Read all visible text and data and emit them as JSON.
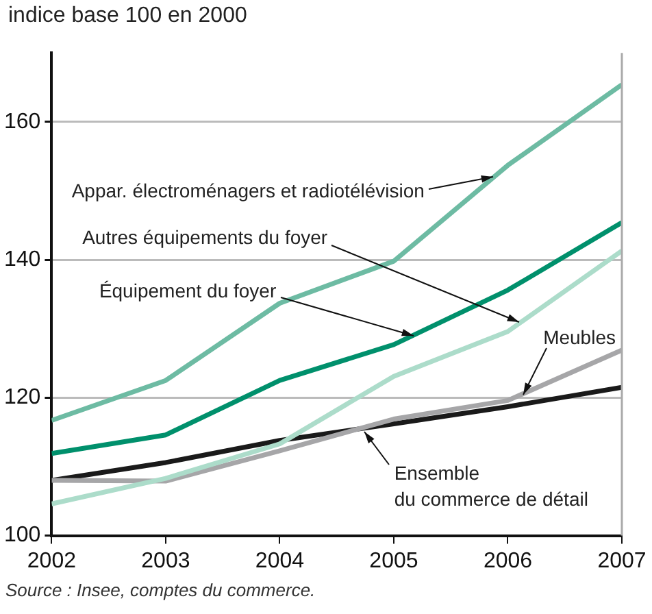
{
  "chart_data": {
    "type": "line",
    "ylabel": "indice base 100 en 2000",
    "x": [
      2002,
      2003,
      2004,
      2005,
      2006,
      2007
    ],
    "series": [
      {
        "color": "#6dbba3",
        "values": [
          116.7,
          122.5,
          133.7,
          139.8,
          153.7,
          165.4
        ]
      },
      {
        "color": "#00906c",
        "values": [
          111.9,
          114.6,
          122.5,
          127.7,
          135.6,
          145.4
        ]
      },
      {
        "color": "#acdcca",
        "values": [
          104.6,
          108.3,
          113.3,
          123.1,
          129.6,
          141.3
        ]
      },
      {
        "color": "#a6a6a8",
        "values": [
          108.0,
          107.9,
          112.3,
          116.9,
          119.6,
          126.9
        ]
      },
      {
        "color": "#1a1a1a",
        "values": [
          108.0,
          110.6,
          113.8,
          116.2,
          118.7,
          121.5
        ]
      }
    ],
    "xlim": [
      2002,
      2007
    ],
    "xticks": [
      2002,
      2003,
      2004,
      2005,
      2006,
      2007
    ],
    "ylim": [
      100,
      170
    ],
    "yticks": [
      100,
      120,
      140,
      160
    ],
    "grid": "y",
    "legend": false,
    "marker": "none",
    "line_style": "solid",
    "annotations": [
      {
        "text": "Appar. électroménagers et radiotélévision",
        "x": 2005.87,
        "y": 152
      },
      {
        "text": "Autres équipements du foyer",
        "x": 2006.1,
        "y": 131
      },
      {
        "text": "Équipement du foyer",
        "x": 2005.17,
        "y": 129
      },
      {
        "text": "Meubles",
        "x": 2006.13,
        "y": 120.5
      },
      {
        "text": "Ensemble\ndu commerce de détail",
        "x": 2004.74,
        "y": 115
      },
      "Source : Insee, comptes du commerce."
    ]
  }
}
